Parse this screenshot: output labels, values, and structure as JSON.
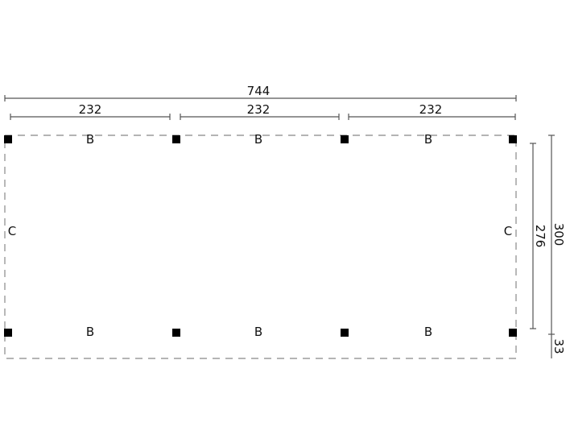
{
  "dimensions": {
    "total_width": "744",
    "bay_widths": [
      "232",
      "232",
      "232"
    ],
    "inner_depth": "276",
    "total_depth": "300",
    "overhang": "33"
  },
  "labels": {
    "top_beams": [
      "B",
      "B",
      "B"
    ],
    "bottom_beams": [
      "B",
      "B",
      "B"
    ],
    "left_side": "C",
    "right_side": "C"
  },
  "colors": {
    "posts": "#000000",
    "outline": "#888888",
    "dimension_lines": "#555555"
  }
}
